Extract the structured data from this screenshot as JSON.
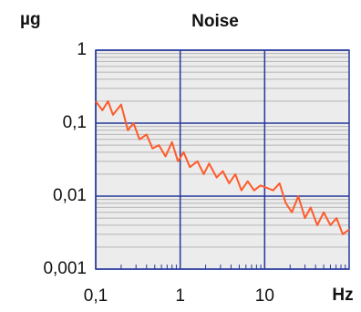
{
  "chart_data": {
    "type": "line",
    "title": "Noise",
    "y_label": "µg",
    "x_label": "Hz",
    "log_x": true,
    "log_y": true,
    "grid": true,
    "xlim": [
      0.1,
      100
    ],
    "ylim": [
      0.001,
      1
    ],
    "xticks": [
      {
        "value": 0.1,
        "label": "0,1"
      },
      1,
      10
    ],
    "yticks": [
      {
        "value": 0.001,
        "label": "0,001"
      },
      {
        "value": 0.01,
        "label": "0,01"
      },
      {
        "value": 0.1,
        "label": "0,1"
      },
      1
    ],
    "grid_color": "#24389a",
    "minor_grid_color": "#b4b4b4",
    "background": "#ececec",
    "x": [
      0.1,
      0.12,
      0.14,
      0.16,
      0.2,
      0.24,
      0.28,
      0.33,
      0.4,
      0.47,
      0.56,
      0.67,
      0.8,
      0.94,
      1.1,
      1.3,
      1.6,
      1.9,
      2.2,
      2.7,
      3.2,
      3.8,
      4.5,
      5.3,
      6.3,
      7.5,
      8.9,
      10.6,
      12.6,
      15,
      17.8,
      21,
      25,
      30,
      35,
      42,
      50,
      60,
      71,
      84,
      100
    ],
    "series": [
      {
        "name": "Noise",
        "color": "#ff5a2a",
        "values": [
          0.2,
          0.15,
          0.2,
          0.13,
          0.18,
          0.08,
          0.1,
          0.06,
          0.07,
          0.045,
          0.05,
          0.035,
          0.055,
          0.03,
          0.04,
          0.025,
          0.03,
          0.02,
          0.028,
          0.018,
          0.022,
          0.015,
          0.02,
          0.012,
          0.016,
          0.012,
          0.014,
          0.013,
          0.012,
          0.015,
          0.008,
          0.006,
          0.01,
          0.005,
          0.007,
          0.004,
          0.006,
          0.004,
          0.005,
          0.003,
          0.0035
        ]
      }
    ]
  }
}
